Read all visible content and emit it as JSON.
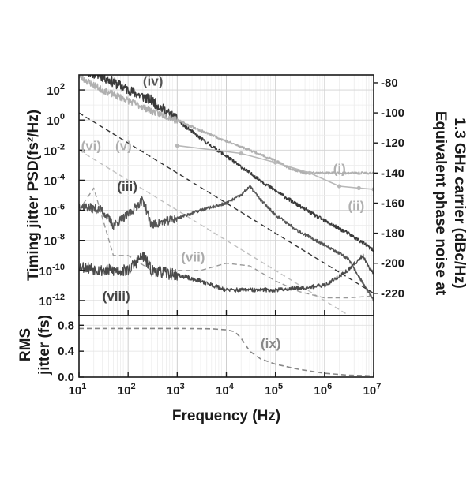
{
  "chart_data": {
    "type": "line",
    "x_scale": "log",
    "x_range": [
      10,
      10000000
    ],
    "xlabel": "Frequency (Hz)",
    "x_ticks": [
      {
        "value": 10,
        "base": "10",
        "exp": "1"
      },
      {
        "value": 100,
        "base": "10",
        "exp": "2"
      },
      {
        "value": 1000,
        "base": "10",
        "exp": "3"
      },
      {
        "value": 10000,
        "base": "10",
        "exp": "4"
      },
      {
        "value": 100000,
        "base": "10",
        "exp": "5"
      },
      {
        "value": 1000000,
        "base": "10",
        "exp": "6"
      },
      {
        "value": 10000000,
        "base": "10",
        "exp": "7"
      }
    ],
    "grid": true,
    "top_panel": {
      "ylabel_left": "Timing jitter PSD(fs²/Hz)",
      "ylabel_right": [
        "Equivalent phase noise at",
        "1.3 GHz carrier (dBc/Hz)"
      ],
      "y_scale": "log",
      "y_range": [
        1e-13,
        1000.0
      ],
      "y_ticks_left": [
        {
          "value": 100.0,
          "base": "10",
          "exp": "2"
        },
        {
          "value": 1.0,
          "base": "10",
          "exp": "0"
        },
        {
          "value": 0.01,
          "base": "10",
          "exp": "-2"
        },
        {
          "value": 0.0001,
          "base": "10",
          "exp": "-4"
        },
        {
          "value": 1e-06,
          "base": "10",
          "exp": "-6"
        },
        {
          "value": 1e-08,
          "base": "10",
          "exp": "-8"
        },
        {
          "value": 1e-10,
          "base": "10",
          "exp": "-10"
        },
        {
          "value": 1e-12,
          "base": "10",
          "exp": "-12"
        }
      ],
      "y_ticks_right": [
        {
          "psd": 300.0,
          "label": "-80"
        },
        {
          "psd": 3.0,
          "label": "-100"
        },
        {
          "psd": 0.03,
          "label": "-120"
        },
        {
          "psd": 0.0003,
          "label": "-140"
        },
        {
          "psd": 3e-06,
          "label": "-160"
        },
        {
          "psd": 3e-08,
          "label": "-180"
        },
        {
          "psd": 3e-10,
          "label": "-200"
        },
        {
          "psd": 3e-12,
          "label": "-220"
        }
      ],
      "series": [
        {
          "id": "iv",
          "color": "#3a3a3a",
          "style": "noisy",
          "width": 1.4,
          "noise": 0.7,
          "seed": 11,
          "points": [
            [
              10,
              3000.0
            ],
            [
              30,
              800.0
            ],
            [
              100,
              100.0
            ],
            [
              300,
              20.0
            ],
            [
              1000,
              1
            ],
            [
              3000,
              0.06
            ],
            [
              10000,
              0.004
            ],
            [
              30000,
              0.0003
            ],
            [
              100000,
              2e-05
            ],
            [
              300000,
              2e-06
            ],
            [
              1000000,
              2e-07
            ],
            [
              3000000,
              3e-08
            ],
            [
              7000000,
              5e-09
            ],
            [
              10000000,
              2e-09
            ]
          ]
        },
        {
          "id": "ii",
          "color": "#b0b0b0",
          "style": "noisy",
          "width": 1.6,
          "noise": 0.45,
          "seed": 23,
          "points": [
            [
              10,
              800.0
            ],
            [
              30,
              100.0
            ],
            [
              100,
              20.0
            ],
            [
              300,
              4
            ],
            [
              1000,
              1
            ],
            [
              3000,
              0.2
            ],
            [
              10000,
              0.04
            ],
            [
              30000,
              0.01
            ],
            [
              100000,
              0.002
            ],
            [
              200000,
              0.0006
            ],
            [
              400000,
              0.0003
            ],
            [
              700000,
              0.0003
            ],
            [
              2000000,
              0.0003
            ],
            [
              10000000,
              0.0003
            ]
          ]
        },
        {
          "id": "i_markers",
          "color": "#b8b8b8",
          "style": "markers",
          "width": 1.6,
          "points": [
            [
              1000,
              0.02
            ],
            [
              20000,
              0.006
            ],
            [
              100000,
              0.0015
            ],
            [
              500000,
              0.0003
            ],
            [
              2000000,
              4e-05
            ],
            [
              5000000,
              3e-05
            ],
            [
              10000000,
              2.5e-05
            ]
          ]
        },
        {
          "id": "v",
          "color": "#333333",
          "style": "dashed",
          "width": 1.4,
          "points": [
            [
              10,
              3
            ],
            [
              10000000,
              3e-12
            ]
          ]
        },
        {
          "id": "vi",
          "color": "#c0c0c0",
          "style": "dashed",
          "width": 1.4,
          "points": [
            [
              10,
              0.01
            ],
            [
              10000000,
              1e-14
            ]
          ]
        },
        {
          "id": "iii",
          "color": "#555555",
          "style": "noisy",
          "width": 1.4,
          "noise": 0.6,
          "seed": 37,
          "points": [
            [
              10,
              2e-06
            ],
            [
              30,
              1e-06
            ],
            [
              50,
              1e-07
            ],
            [
              100,
              5e-07
            ],
            [
              200,
              5e-06
            ],
            [
              300,
              1e-07
            ],
            [
              1000,
              3e-07
            ],
            [
              3000,
              1e-06
            ],
            [
              10000,
              3e-06
            ],
            [
              20000,
              1e-05
            ],
            [
              30000,
              4e-05
            ],
            [
              50000,
              5e-06
            ],
            [
              100000,
              5e-07
            ],
            [
              300000,
              4e-08
            ],
            [
              1000000,
              5e-09
            ],
            [
              3000000,
              6e-10
            ],
            [
              10000000,
              1e-12
            ]
          ]
        },
        {
          "id": "vii",
          "color": "#999999",
          "style": "dashed",
          "width": 1.4,
          "points": [
            [
              10,
              1e-06
            ],
            [
              20,
              3e-05
            ],
            [
              50,
              1e-09
            ],
            [
              100,
              1e-09
            ],
            [
              300,
              1e-10
            ],
            [
              1000,
              1e-10
            ],
            [
              3000,
              1e-10
            ],
            [
              10000,
              3e-10
            ],
            [
              30000,
              2e-10
            ],
            [
              100000,
              2e-11
            ],
            [
              300000,
              4e-12
            ],
            [
              1000000,
              1.5e-12
            ],
            [
              3000000,
              1.5e-12
            ],
            [
              10000000,
              2e-12
            ]
          ]
        },
        {
          "id": "viii",
          "color": "#4a4a4a",
          "style": "noisy",
          "width": 1.3,
          "noise": 0.8,
          "seed": 53,
          "points": [
            [
              10,
              2e-10
            ],
            [
              30,
              1e-10
            ],
            [
              100,
              1e-10
            ],
            [
              200,
              1e-09
            ],
            [
              300,
              1e-10
            ],
            [
              1000,
              5e-11
            ],
            [
              3000,
              2e-11
            ],
            [
              10000,
              5e-12
            ],
            [
              100000,
              5e-12
            ],
            [
              1000000,
              1e-11
            ],
            [
              3000000,
              1e-10
            ],
            [
              6000000,
              1e-09
            ],
            [
              10000000,
              5e-11
            ]
          ]
        }
      ],
      "annotations": [
        {
          "text": "(iv)",
          "x": 200,
          "y": 200.0,
          "color": "#555555"
        },
        {
          "text": "(vi)",
          "x": 11,
          "y": 0.01,
          "color": "#b0b0b0"
        },
        {
          "text": "(v)",
          "x": 55,
          "y": 0.01,
          "color": "#b0b0b0"
        },
        {
          "text": "(iii)",
          "x": 60,
          "y": 2e-05,
          "color": "#444444"
        },
        {
          "text": "(i)",
          "x": 1500000,
          "y": 0.0003,
          "color": "#b0b0b0"
        },
        {
          "text": "(ii)",
          "x": 3000000,
          "y": 1e-06,
          "color": "#b0b0b0"
        },
        {
          "text": "(vii)",
          "x": 1200,
          "y": 4e-10,
          "color": "#aaaaaa"
        },
        {
          "text": "(viii)",
          "x": 30,
          "y": 1e-12,
          "color": "#444444"
        }
      ]
    },
    "bottom_panel": {
      "ylabel": [
        "RMS",
        "jitter (fs)"
      ],
      "y_range": [
        0,
        0.95
      ],
      "y_ticks": [
        {
          "value": 0.8,
          "label": "0.8"
        },
        {
          "value": 0.4,
          "label": "0.4"
        },
        {
          "value": 0.0,
          "label": "0.0"
        }
      ],
      "series": [
        {
          "id": "ix",
          "color": "#888888",
          "style": "dashed",
          "width": 1.6,
          "points": [
            [
              10,
              0.75
            ],
            [
              1000,
              0.75
            ],
            [
              5000,
              0.745
            ],
            [
              10000,
              0.73
            ],
            [
              15000,
              0.7
            ],
            [
              20000,
              0.6
            ],
            [
              30000,
              0.4
            ],
            [
              50000,
              0.28
            ],
            [
              100000,
              0.2
            ],
            [
              300000,
              0.12
            ],
            [
              1000000,
              0.06
            ],
            [
              3000000,
              0.03
            ],
            [
              10000000,
              0.02
            ]
          ]
        }
      ],
      "annotations": [
        {
          "text": "(ix)",
          "x": 50000,
          "y": 0.45,
          "color": "#888888"
        }
      ]
    }
  }
}
